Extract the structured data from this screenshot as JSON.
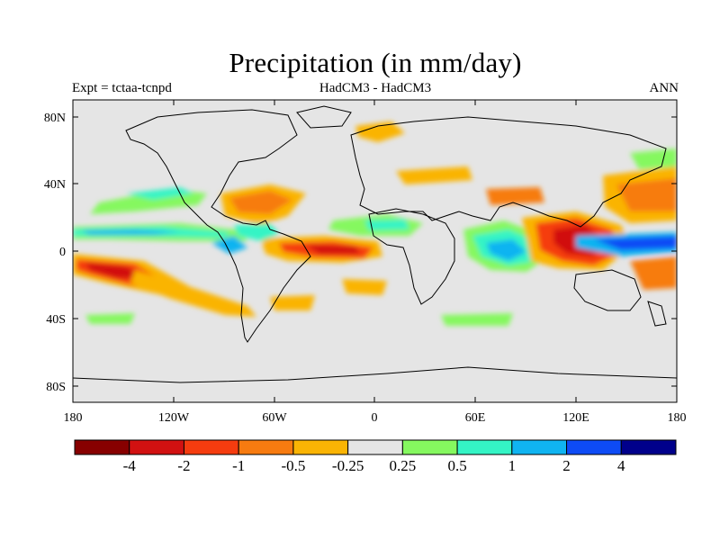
{
  "title": "Precipitation (in mm/day)",
  "subtitle_left": "Expt = tctaa-tcnpd",
  "subtitle_center": "HadCM3 - HadCM3",
  "subtitle_right": "ANN",
  "lat_ticks": [
    "80N",
    "40N",
    "0",
    "40S",
    "80S"
  ],
  "lon_ticks": [
    "180",
    "120W",
    "60W",
    "0",
    "60E",
    "120E",
    "180"
  ],
  "colorbar": {
    "colors": [
      "#870000",
      "#d11111",
      "#f53c0f",
      "#f77b10",
      "#fab404",
      "#e5e5e5",
      "#85f85f",
      "#34f4c5",
      "#10b4f1",
      "#0e4bf5",
      "#00008b"
    ],
    "labels": [
      "-4",
      "-2",
      "-1",
      "-0.5",
      "-0.25",
      "0.25",
      "0.5",
      "1",
      "2",
      "4"
    ]
  },
  "map_colors": {
    "ocean_neutral": "#e5e5e5",
    "coast": "#000000"
  }
}
